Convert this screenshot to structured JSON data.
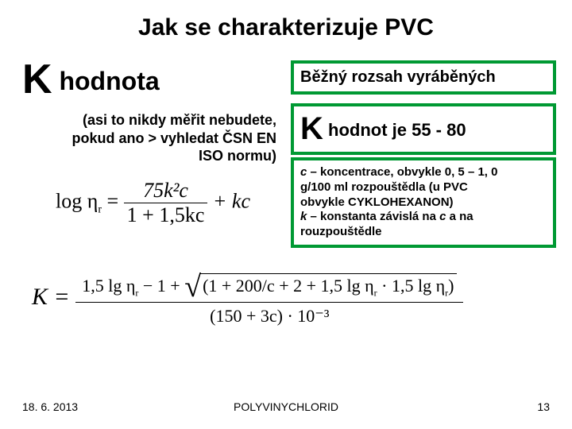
{
  "title": "Jak se charakterizuje PVC",
  "left": {
    "k_label_k": "K",
    "k_label_text": " hodnota",
    "note_l1": "(asi to nikdy měřit nebudete,",
    "note_l2": "pokud ano > vyhledat ČSN EN",
    "note_l3": "ISO  normu)"
  },
  "box1": {
    "text": "Běžný rozsah vyráběných"
  },
  "box2": {
    "k": "K",
    "text": " hodnot je 55 - 80"
  },
  "box3": {
    "l1a": "c",
    "l1b": " – koncentrace, obvykle 0, 5 – 1, 0",
    "l2": "g/100 ml rozpouštědla (u PVC",
    "l3": "obvykle CYKLOHEXANON)",
    "l4a": "k",
    "l4b": " – konstanta závislá na ",
    "l4c": "c",
    "l4d": " a na",
    "l5": "rouzpouštědle"
  },
  "colors": {
    "green_border": "#009933"
  },
  "formula1": {
    "lhs": "log η",
    "sub_r": "r",
    "eq": " = ",
    "num": "75k²c",
    "den": "1 + 1,5kc",
    "plus_kc": " + kc"
  },
  "formula2": {
    "K_eq": "K = ",
    "num_a": "1,5 lg η",
    "num_sub1": "r",
    "num_b": " − 1 + ",
    "inside_a": "(1 + 200/c + 2 + 1,5 lg η",
    "inside_sub": "r",
    "inside_b": " · 1,5 lg η",
    "inside_sub2": "r",
    "inside_c": ")",
    "den": "(150 + 3c) · 10⁻³"
  },
  "footer": {
    "date": "18. 6. 2013",
    "center": "POLYVINYCHLORID",
    "page": "13"
  }
}
